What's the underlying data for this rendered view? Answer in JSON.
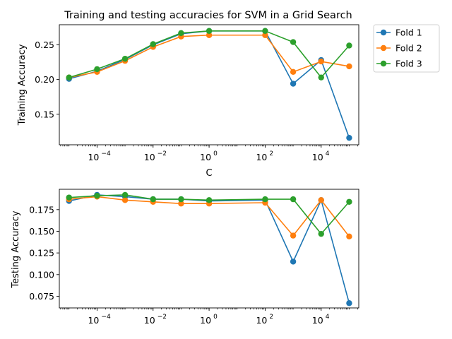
{
  "chart_data": [
    {
      "type": "line",
      "title": "Training and testing accuracies for SVM in a Grid Search",
      "xlabel": "C",
      "ylabel": "Training Accuracy",
      "xscale": "log",
      "x": [
        1e-05,
        0.0001,
        0.001,
        0.01,
        0.1,
        1,
        100,
        1000,
        10000,
        100000
      ],
      "xticks": [
        0.0001,
        0.01,
        1,
        100,
        10000
      ],
      "xtick_labels": [
        [
          "10",
          "−4"
        ],
        [
          "10",
          "−2"
        ],
        [
          "10",
          "0"
        ],
        [
          "10",
          "2"
        ],
        [
          "10",
          "4"
        ]
      ],
      "xlim": [
        4.5e-06,
        220000
      ],
      "ylim": [
        0.106,
        0.279
      ],
      "yticks": [
        0.15,
        0.2,
        0.25
      ],
      "ytick_labels": [
        "0.15",
        "0.20",
        "0.25"
      ],
      "legend": "outside-top-right",
      "series": [
        {
          "name": "Fold 1",
          "color": "#1f77b4",
          "values": [
            0.201,
            0.212,
            0.229,
            0.25,
            0.266,
            0.27,
            0.27,
            0.194,
            0.228,
            0.116
          ]
        },
        {
          "name": "Fold 2",
          "color": "#ff7f0e",
          "values": [
            0.203,
            0.211,
            0.227,
            0.247,
            0.262,
            0.264,
            0.264,
            0.211,
            0.226,
            0.219
          ]
        },
        {
          "name": "Fold 3",
          "color": "#2ca02c",
          "values": [
            0.203,
            0.215,
            0.23,
            0.251,
            0.267,
            0.27,
            0.27,
            0.254,
            0.203,
            0.249
          ]
        }
      ]
    },
    {
      "type": "line",
      "title": "",
      "xlabel": "",
      "ylabel": "Testing Accuracy",
      "xscale": "log",
      "x": [
        1e-05,
        0.0001,
        0.001,
        0.01,
        0.1,
        1,
        100,
        1000,
        10000,
        100000
      ],
      "xticks": [
        0.0001,
        0.01,
        1,
        100,
        10000
      ],
      "xtick_labels": [
        [
          "10",
          "−4"
        ],
        [
          "10",
          "−2"
        ],
        [
          "10",
          "0"
        ],
        [
          "10",
          "2"
        ],
        [
          "10",
          "4"
        ]
      ],
      "xlim": [
        4.5e-06,
        220000
      ],
      "ylim": [
        0.0615,
        0.1985
      ],
      "yticks": [
        0.075,
        0.1,
        0.125,
        0.15,
        0.175
      ],
      "ytick_labels": [
        "0.075",
        "0.100",
        "0.125",
        "0.150",
        "0.175"
      ],
      "series": [
        {
          "name": "Fold 1",
          "color": "#1f77b4",
          "values": [
            0.185,
            0.192,
            0.19,
            0.187,
            0.187,
            0.185,
            0.186,
            0.115,
            0.186,
            0.067
          ]
        },
        {
          "name": "Fold 2",
          "color": "#ff7f0e",
          "values": [
            0.187,
            0.19,
            0.186,
            0.184,
            0.182,
            0.182,
            0.183,
            0.145,
            0.186,
            0.144
          ]
        },
        {
          "name": "Fold 3",
          "color": "#2ca02c",
          "values": [
            0.189,
            0.191,
            0.192,
            0.187,
            0.187,
            0.186,
            0.187,
            0.187,
            0.147,
            0.184
          ]
        }
      ]
    }
  ]
}
